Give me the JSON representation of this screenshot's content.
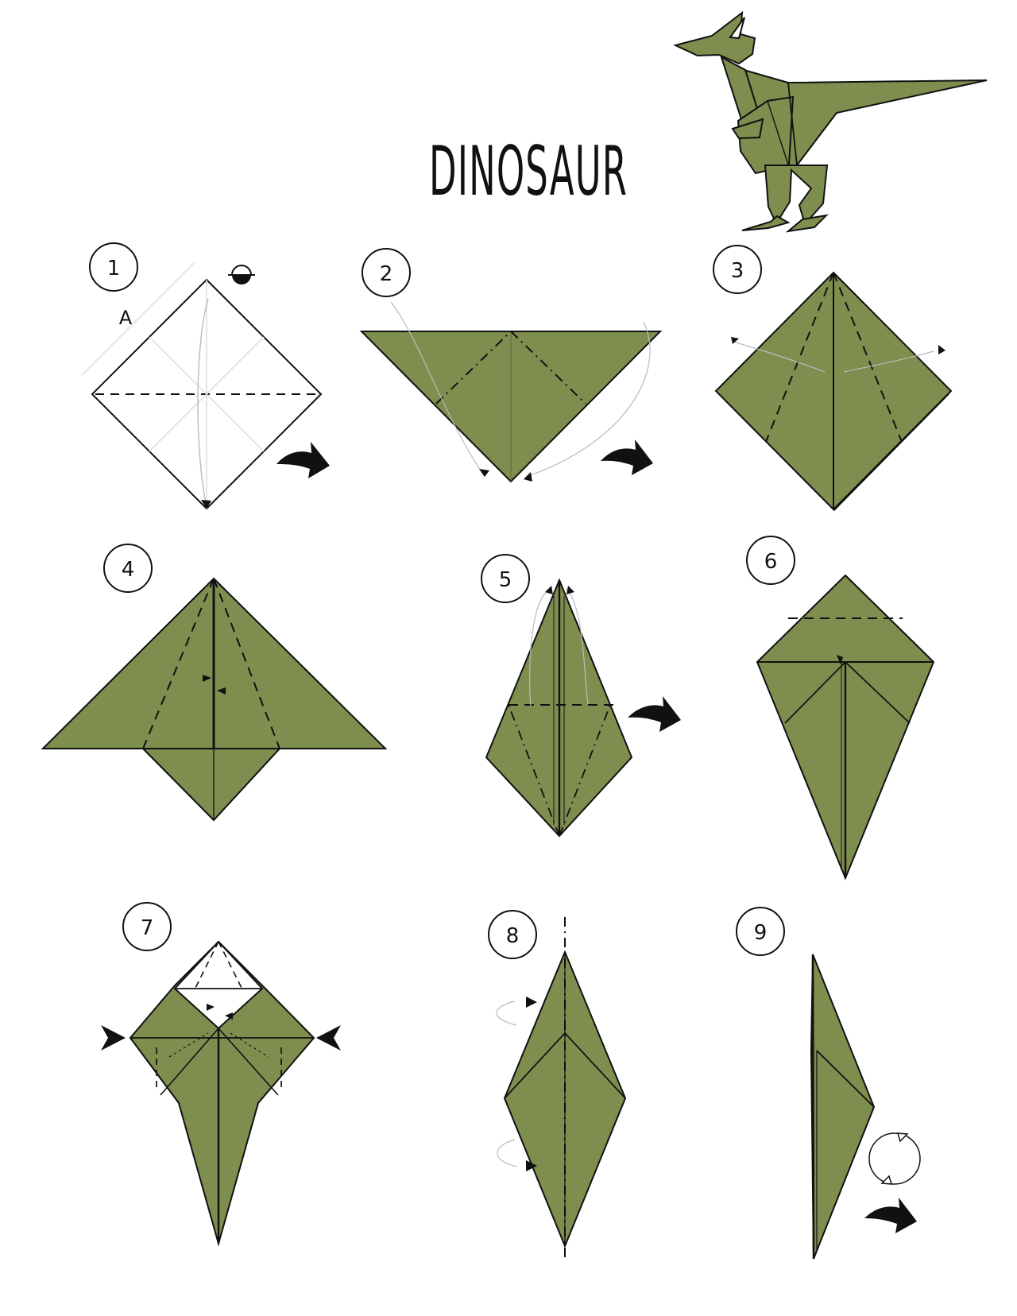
{
  "title": "DINOSAUR",
  "diagram": {
    "colors": {
      "paper": "#7e8e4e",
      "paper_dark": "#6b7a41",
      "line": "#111111",
      "background": "#ffffff"
    },
    "steps": [
      {
        "number": "1",
        "edge_label": "A"
      },
      {
        "number": "2"
      },
      {
        "number": "3"
      },
      {
        "number": "4"
      },
      {
        "number": "5"
      },
      {
        "number": "6"
      },
      {
        "number": "7"
      },
      {
        "number": "8"
      },
      {
        "number": "9"
      }
    ],
    "icons": {
      "turn_over": "turn-over-icon",
      "next": "next-arrow-icon",
      "rotate": "rotate-icon",
      "squash": "squash-arrow-icon"
    }
  }
}
